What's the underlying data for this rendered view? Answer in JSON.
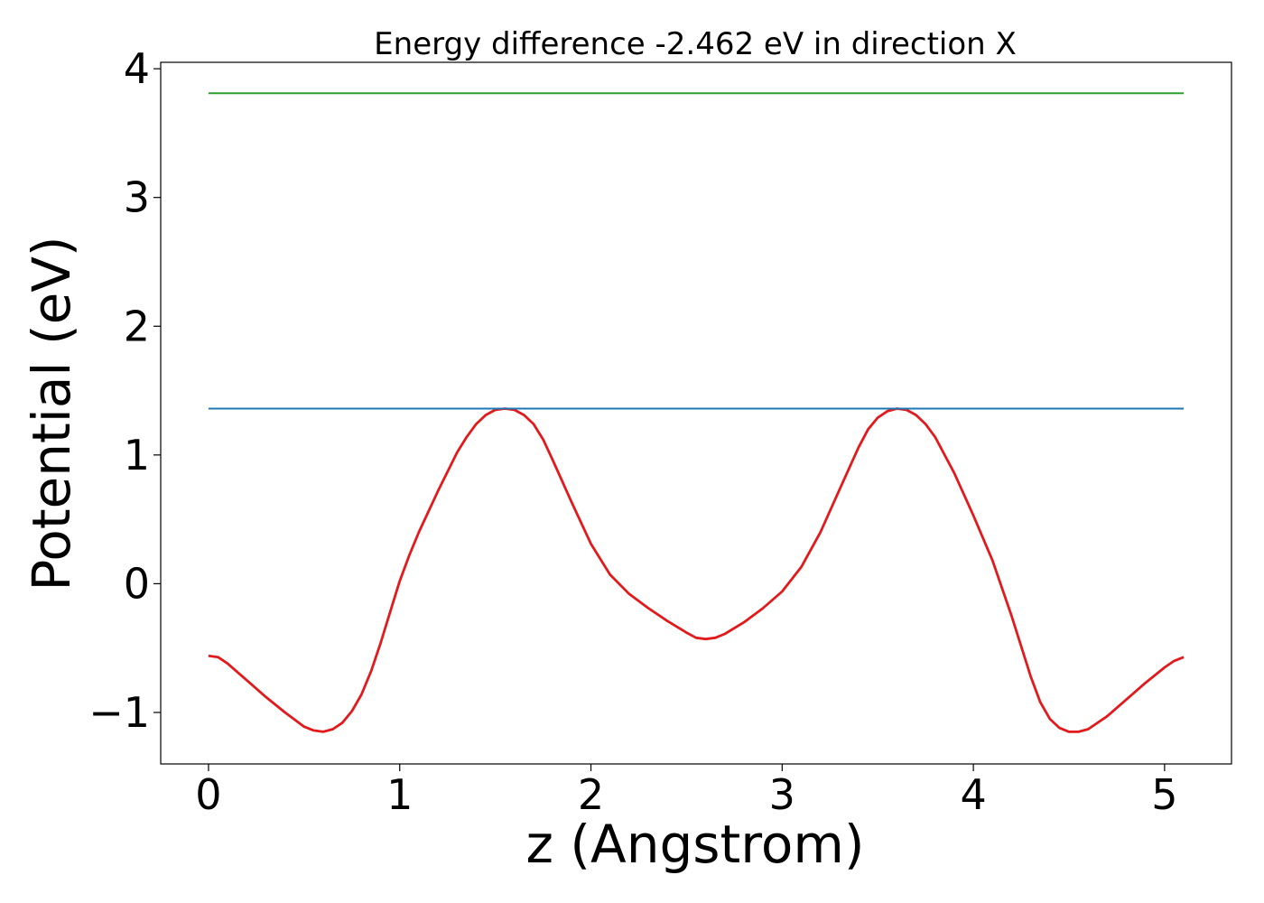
{
  "chart_data": {
    "type": "line",
    "title": "Energy difference -2.462 eV in direction X",
    "xlabel": "z (Angstrom)",
    "ylabel": "Potential (eV)",
    "xlim": [
      -0.25,
      5.35
    ],
    "ylim": [
      -1.4,
      4.05
    ],
    "x_ticks": [
      0,
      1,
      2,
      3,
      4,
      5
    ],
    "x_tick_labels": [
      "0",
      "1",
      "2",
      "3",
      "4",
      "5"
    ],
    "y_ticks": [
      -1,
      0,
      1,
      2,
      3,
      4
    ],
    "y_tick_labels": [
      "−1",
      "0",
      "1",
      "2",
      "3",
      "4"
    ],
    "grid": false,
    "series": [
      {
        "color": "#e31a1c",
        "x": [
          0,
          0.05,
          0.1,
          0.2,
          0.3,
          0.4,
          0.5,
          0.55,
          0.6,
          0.65,
          0.7,
          0.75,
          0.8,
          0.85,
          0.9,
          0.95,
          1.0,
          1.05,
          1.1,
          1.2,
          1.3,
          1.35,
          1.4,
          1.45,
          1.5,
          1.55,
          1.6,
          1.65,
          1.7,
          1.75,
          1.8,
          1.9,
          2.0,
          2.1,
          2.2,
          2.3,
          2.4,
          2.5,
          2.55,
          2.6,
          2.65,
          2.7,
          2.8,
          2.9,
          3.0,
          3.1,
          3.2,
          3.3,
          3.4,
          3.45,
          3.5,
          3.55,
          3.6,
          3.65,
          3.7,
          3.75,
          3.8,
          3.9,
          4.0,
          4.1,
          4.2,
          4.3,
          4.35,
          4.4,
          4.45,
          4.5,
          4.55,
          4.6,
          4.7,
          4.8,
          4.9,
          5.0,
          5.05,
          5.1
        ],
        "y": [
          -0.56,
          -0.57,
          -0.62,
          -0.75,
          -0.88,
          -1.0,
          -1.11,
          -1.14,
          -1.15,
          -1.13,
          -1.08,
          -0.99,
          -0.86,
          -0.68,
          -0.46,
          -0.22,
          0.02,
          0.22,
          0.4,
          0.72,
          1.02,
          1.14,
          1.24,
          1.31,
          1.35,
          1.36,
          1.35,
          1.31,
          1.24,
          1.12,
          0.96,
          0.63,
          0.31,
          0.07,
          -0.08,
          -0.19,
          -0.29,
          -0.38,
          -0.42,
          -0.43,
          -0.42,
          -0.39,
          -0.3,
          -0.19,
          -0.06,
          0.13,
          0.4,
          0.73,
          1.06,
          1.2,
          1.29,
          1.34,
          1.36,
          1.35,
          1.31,
          1.24,
          1.14,
          0.86,
          0.53,
          0.18,
          -0.25,
          -0.72,
          -0.92,
          -1.05,
          -1.12,
          -1.15,
          -1.15,
          -1.13,
          -1.03,
          -0.9,
          -0.77,
          -0.65,
          -0.6,
          -0.57
        ]
      },
      {
        "color": "#1f77b4",
        "x": [
          0,
          5.1
        ],
        "y": [
          1.36,
          1.36
        ]
      },
      {
        "color": "#2ca02c",
        "x": [
          0,
          5.1
        ],
        "y": [
          3.81,
          3.81
        ]
      }
    ]
  }
}
